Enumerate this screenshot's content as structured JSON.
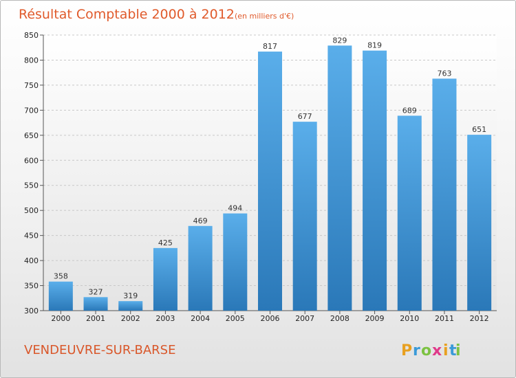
{
  "chart_data": {
    "type": "bar",
    "title": "Résultat Comptable 2000 à 2012",
    "subtitle": "(en milliers d'€)",
    "categories": [
      "2000",
      "2001",
      "2002",
      "2003",
      "2004",
      "2005",
      "2006",
      "2007",
      "2008",
      "2009",
      "2010",
      "2011",
      "2012"
    ],
    "values": [
      358,
      327,
      319,
      425,
      469,
      494,
      817,
      677,
      829,
      819,
      689,
      763,
      651
    ],
    "data_labels": [
      "358",
      "327",
      "319",
      "425",
      "469",
      "494",
      "817",
      "677",
      "829",
      "819",
      "689",
      "763",
      "651"
    ],
    "ylim": [
      300,
      850
    ],
    "yticks": [
      300,
      350,
      400,
      450,
      500,
      550,
      600,
      650,
      700,
      750,
      800,
      850
    ],
    "grid": true,
    "xlabel": "",
    "ylabel": "",
    "colors": {
      "bar_top": "#5aaeea",
      "bar_bottom": "#2a78b8",
      "title": "#e05a2b"
    }
  },
  "footer": {
    "city": "VENDEUVRE-SUR-BARSE",
    "logo_letters": [
      "P",
      "r",
      "o",
      "x",
      "i",
      "t",
      "i"
    ],
    "logo_colors": [
      "#e8a020",
      "#3a9ad8",
      "#7cc242",
      "#e03a8a",
      "#e8a020",
      "#3a9ad8",
      "#7cc242"
    ]
  }
}
